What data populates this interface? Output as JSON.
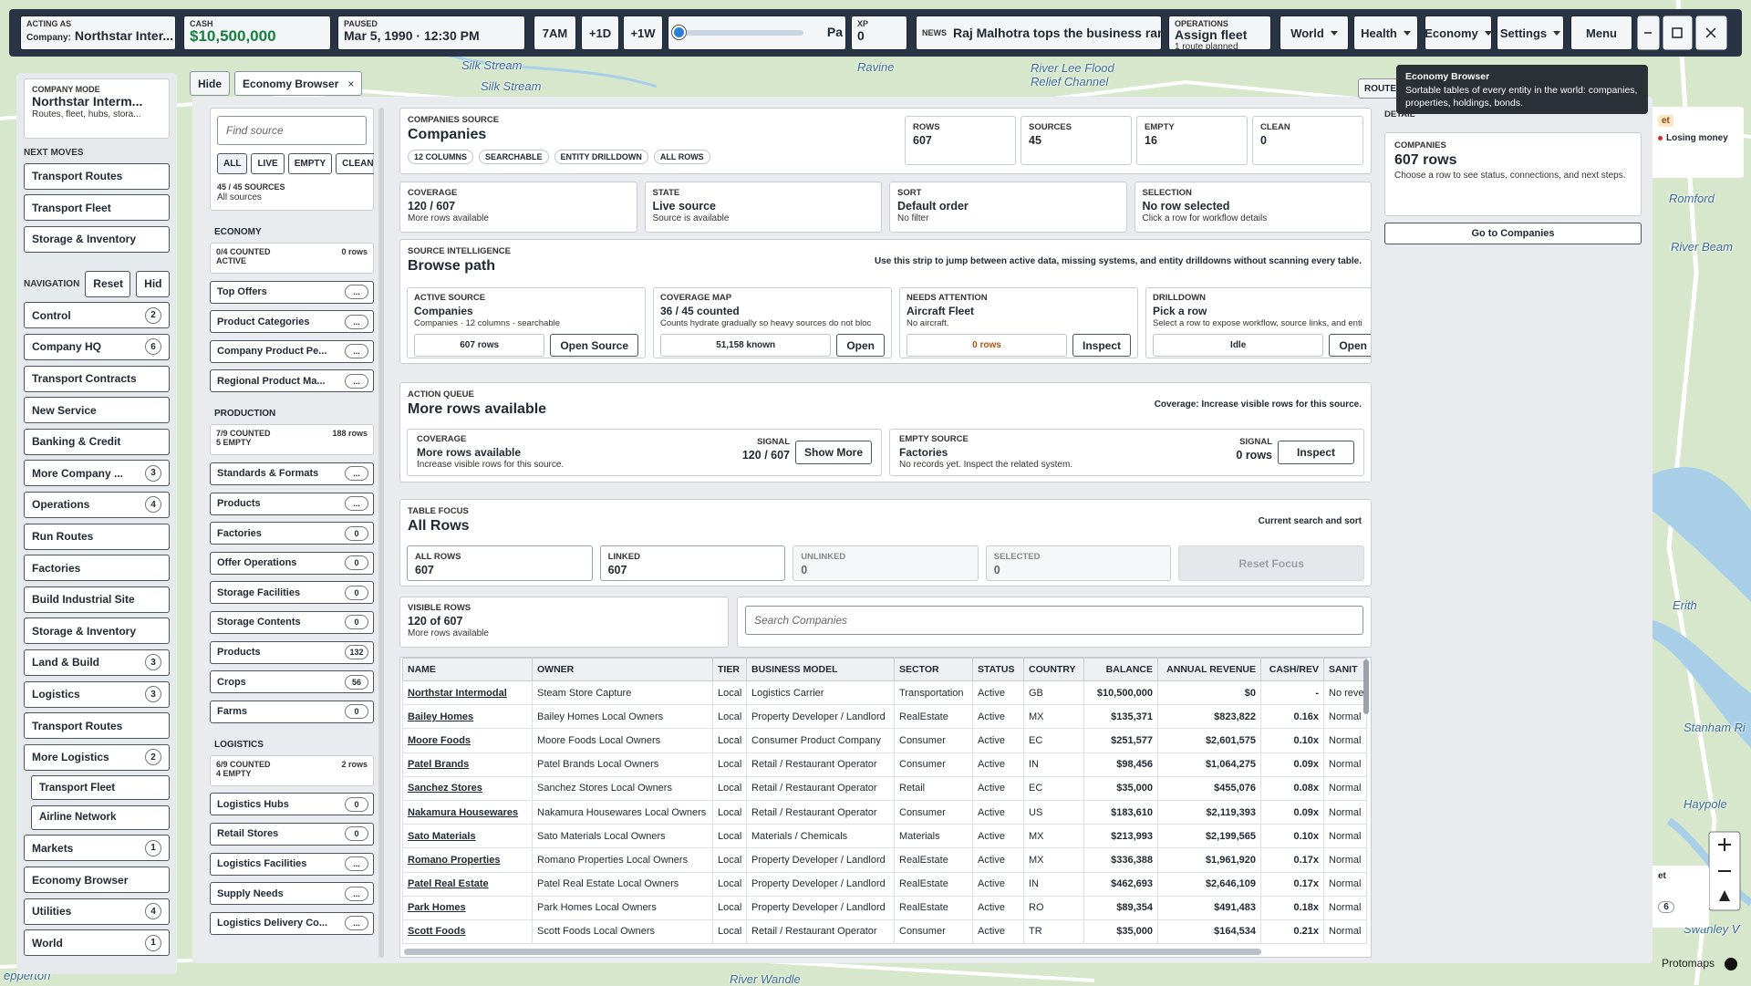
{
  "top_bar": {
    "acting": {
      "label": "ACTING AS",
      "prefix": "Company:",
      "value": "Northstar Inter..."
    },
    "cash": {
      "label": "CASH",
      "value": "$10,500,000"
    },
    "clock": {
      "label": "PAUSED",
      "value": "Mar 5, 1990 · 12:30 PM"
    },
    "speed_buttons": [
      "7AM",
      "+1D",
      "+1W"
    ],
    "slider_label": "Pa",
    "xp": {
      "label": "XP",
      "value": "0"
    },
    "news": {
      "label": "NEWS",
      "value": "Raj Malhotra tops the business rank"
    },
    "operations": {
      "label": "OPERATIONS",
      "value": "Assign fleet",
      "detail": "1 route planned"
    },
    "menus": [
      "World",
      "Health",
      "Economy",
      "Settings"
    ],
    "menu_button": "Menu"
  },
  "map_labels": [
    "Silk Stream",
    "Silk Stream",
    "Ravine",
    "River Lee Flood",
    "Relief Channel",
    "Romford",
    "River Beam",
    "Erith",
    "Stanham Ri",
    "Haypole",
    "Swanley V",
    "River Wandle",
    "epperton"
  ],
  "map_side": {
    "tag": "et",
    "alert": "Losing money",
    "tag2": "et",
    "count": "6",
    "attribution": "Protomaps"
  },
  "sidebar": {
    "company_mode": {
      "label": "COMPANY MODE",
      "name": "Northstar Interm...",
      "detail": "Routes, fleet, hubs, stora..."
    },
    "next_moves_title": "NEXT MOVES",
    "next_moves": [
      "Transport Routes",
      "Transport Fleet",
      "Storage & Inventory"
    ],
    "navigation_title": "NAVIGATION",
    "navigation_buttons": [
      "Reset",
      "Hid"
    ],
    "nav_items": [
      {
        "label": "Control",
        "count": 2
      },
      {
        "label": "Company HQ",
        "count": 6
      },
      {
        "label": "Transport Contracts"
      },
      {
        "label": "New Service"
      },
      {
        "label": "Banking & Credit"
      },
      {
        "label": "More Company ...",
        "count": 3
      },
      {
        "label": "Operations",
        "count": 4
      },
      {
        "label": "Run Routes"
      },
      {
        "label": "Factories"
      },
      {
        "label": "Build Industrial Site"
      },
      {
        "label": "Storage & Inventory"
      },
      {
        "label": "Land & Build",
        "count": 3
      },
      {
        "label": "Logistics",
        "count": 3
      },
      {
        "label": "Transport Routes"
      },
      {
        "label": "More Logistics",
        "count": 2,
        "children": [
          "Transport Fleet",
          "Airline Network"
        ]
      },
      {
        "label": "Markets",
        "count": 1
      },
      {
        "label": "Economy Browser"
      },
      {
        "label": "Utilities",
        "count": 4
      },
      {
        "label": "World",
        "count": 1
      }
    ]
  },
  "panel": {
    "hide": "Hide",
    "tab": "Economy Browser",
    "close": "×",
    "route_tab": "ROUTE",
    "tooltip": {
      "title": "Economy Browser",
      "text": "Sortable tables of every entity in the world: companies, properties, holdings, bonds."
    },
    "sources": {
      "search_placeholder": "Find source",
      "filters": [
        "ALL",
        "LIVE",
        "EMPTY",
        "CLEAN"
      ],
      "count": "45 / 45 SOURCES",
      "scope": "All sources",
      "groups": [
        {
          "title": "ECONOMY",
          "counted": "0/4 COUNTED",
          "status": "ACTIVE",
          "rows": "0 rows",
          "items": [
            {
              "label": "Top Offers",
              "badge": "..."
            },
            {
              "label": "Product Categories",
              "badge": "..."
            },
            {
              "label": "Company Product Pe...",
              "badge": "..."
            },
            {
              "label": "Regional Product Ma...",
              "badge": "..."
            }
          ]
        },
        {
          "title": "PRODUCTION",
          "counted": "7/9 COUNTED",
          "status": "5 EMPTY",
          "rows": "188 rows",
          "items": [
            {
              "label": "Standards & Formats",
              "badge": "..."
            },
            {
              "label": "Products",
              "badge": "..."
            },
            {
              "label": "Factories",
              "badge": 0
            },
            {
              "label": "Offer Operations",
              "badge": 0
            },
            {
              "label": "Storage Facilities",
              "badge": 0
            },
            {
              "label": "Storage Contents",
              "badge": 0
            },
            {
              "label": "Products",
              "badge": 132
            },
            {
              "label": "Crops",
              "badge": 56
            },
            {
              "label": "Farms",
              "badge": 0
            }
          ]
        },
        {
          "title": "LOGISTICS",
          "counted": "6/9 COUNTED",
          "status": "4 EMPTY",
          "rows": "2 rows",
          "items": [
            {
              "label": "Logistics Hubs",
              "badge": 0
            },
            {
              "label": "Retail Stores",
              "badge": 0
            },
            {
              "label": "Logistics Facilities",
              "badge": "..."
            },
            {
              "label": "Supply Needs",
              "badge": "..."
            },
            {
              "label": "Logistics Delivery Co...",
              "badge": "..."
            }
          ]
        }
      ]
    },
    "main": {
      "header": {
        "label": "COMPANIES SOURCE",
        "title": "Companies",
        "tags": [
          "12 COLUMNS",
          "SEARCHABLE",
          "ENTITY DRILLDOWN",
          "ALL ROWS"
        ],
        "stats": [
          {
            "label": "ROWS",
            "value": 607
          },
          {
            "label": "SOURCES",
            "value": 45
          },
          {
            "label": "EMPTY",
            "value": 16
          },
          {
            "label": "CLEAN",
            "value": 0
          }
        ]
      },
      "cards": [
        {
          "label": "COVERAGE",
          "value": "120 / 607",
          "detail": "More rows available"
        },
        {
          "label": "STATE",
          "value": "Live source",
          "detail": "Source is available"
        },
        {
          "label": "SORT",
          "value": "Default order",
          "detail": "No filter"
        },
        {
          "label": "SELECTION",
          "value": "No row selected",
          "detail": "Click a row for workflow details"
        }
      ],
      "intel": {
        "label": "SOURCE INTELLIGENCE",
        "title": "Browse path",
        "note": "Use this strip to jump between active data, missing systems, and entity drilldowns without scanning every table.",
        "cards": [
          {
            "label": "ACTIVE SOURCE",
            "value": "Companies",
            "detail": "Companies · 12 columns · searchable",
            "metric": "607 rows",
            "action": "Open Source"
          },
          {
            "label": "COVERAGE MAP",
            "value": "36 / 45 counted",
            "detail": "Counts hydrate gradually so heavy sources do not bloc",
            "metric": "51,158 known",
            "action": "Open"
          },
          {
            "label": "NEEDS ATTENTION",
            "value": "Aircraft Fleet",
            "detail": "No aircraft.",
            "metric": "0 rows",
            "metric_color": "#b45309",
            "action": "Inspect"
          },
          {
            "label": "DRILLDOWN",
            "value": "Pick a row",
            "detail": "Select a row to expose workflow, source links, and enti",
            "metric": "Idle",
            "action": "Open"
          }
        ]
      },
      "queue": {
        "label": "ACTION QUEUE",
        "title": "More rows available",
        "note": "Coverage: Increase visible rows for this source.",
        "cards": [
          {
            "label": "COVERAGE",
            "value": "More rows available",
            "detail": "Increase visible rows for this source.",
            "signal_label": "SIGNAL",
            "signal": "120 / 607",
            "action": "Show More"
          },
          {
            "label": "EMPTY SOURCE",
            "value": "Factories",
            "detail": "No records yet. Inspect the related system.",
            "signal_label": "SIGNAL",
            "signal": "0 rows",
            "action": "Inspect"
          }
        ]
      },
      "focus": {
        "label": "TABLE FOCUS",
        "title": "All Rows",
        "note": "Current search and sort",
        "stats": [
          {
            "label": "ALL ROWS",
            "value": 607
          },
          {
            "label": "LINKED",
            "value": 607
          },
          {
            "label": "UNLINKED",
            "value": 0
          },
          {
            "label": "SELECTED",
            "value": 0
          }
        ],
        "reset": "Reset Focus"
      },
      "visible": {
        "label": "VISIBLE ROWS",
        "value": "120 of 607",
        "detail": "More rows available",
        "search_placeholder": "Search Companies"
      },
      "table": {
        "columns": [
          "NAME",
          "OWNER",
          "TIER",
          "BUSINESS MODEL",
          "SECTOR",
          "STATUS",
          "COUNTRY",
          "BALANCE",
          "ANNUAL REVENUE",
          "CASH/REV",
          "SANIT"
        ],
        "rows": [
          [
            "Northstar Intermodal",
            "Steam Store Capture",
            "Local",
            "Logistics Carrier",
            "Transportation",
            "Active",
            "GB",
            "$10,500,000",
            "$0",
            "-",
            "No reve"
          ],
          [
            "Bailey Homes",
            "Bailey Homes Local Owners",
            "Local",
            "Property Developer / Landlord",
            "RealEstate",
            "Active",
            "MX",
            "$135,371",
            "$823,822",
            "0.16x",
            "Normal"
          ],
          [
            "Moore Foods",
            "Moore Foods Local Owners",
            "Local",
            "Consumer Product Company",
            "Consumer",
            "Active",
            "EC",
            "$251,577",
            "$2,601,575",
            "0.10x",
            "Normal"
          ],
          [
            "Patel Brands",
            "Patel Brands Local Owners",
            "Local",
            "Retail / Restaurant Operator",
            "Consumer",
            "Active",
            "IN",
            "$98,456",
            "$1,064,275",
            "0.09x",
            "Normal"
          ],
          [
            "Sanchez Stores",
            "Sanchez Stores Local Owners",
            "Local",
            "Retail / Restaurant Operator",
            "Retail",
            "Active",
            "EC",
            "$35,000",
            "$455,076",
            "0.08x",
            "Normal"
          ],
          [
            "Nakamura Housewares",
            "Nakamura Housewares Local Owners",
            "Local",
            "Retail / Restaurant Operator",
            "Consumer",
            "Active",
            "US",
            "$183,610",
            "$2,119,393",
            "0.09x",
            "Normal"
          ],
          [
            "Sato Materials",
            "Sato Materials Local Owners",
            "Local",
            "Materials / Chemicals",
            "Materials",
            "Active",
            "MX",
            "$213,993",
            "$2,199,565",
            "0.10x",
            "Normal"
          ],
          [
            "Romano Properties",
            "Romano Properties Local Owners",
            "Local",
            "Property Developer / Landlord",
            "RealEstate",
            "Active",
            "MX",
            "$336,388",
            "$1,961,920",
            "0.17x",
            "Normal"
          ],
          [
            "Patel Real Estate",
            "Patel Real Estate Local Owners",
            "Local",
            "Property Developer / Landlord",
            "RealEstate",
            "Active",
            "IN",
            "$462,693",
            "$2,646,109",
            "0.17x",
            "Normal"
          ],
          [
            "Park Homes",
            "Park Homes Local Owners",
            "Local",
            "Property Developer / Landlord",
            "RealEstate",
            "Active",
            "RO",
            "$89,354",
            "$491,483",
            "0.18x",
            "Normal"
          ],
          [
            "Scott Foods",
            "Scott Foods Local Owners",
            "Local",
            "Retail / Restaurant Operator",
            "Consumer",
            "Active",
            "TR",
            "$35,000",
            "$164,534",
            "0.21x",
            "Normal"
          ]
        ]
      }
    },
    "detail": {
      "label": "DETAIL",
      "card": {
        "label": "COMPANIES",
        "value": "607 rows",
        "detail": "Choose a row to see status, connections, and next steps."
      },
      "action": "Go to Companies"
    }
  }
}
